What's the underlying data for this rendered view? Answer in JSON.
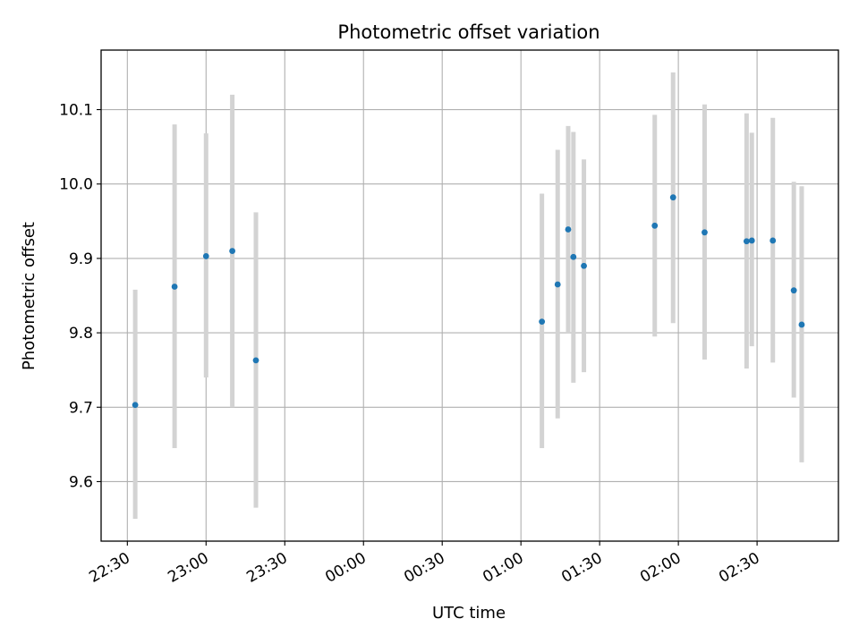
{
  "chart_data": {
    "type": "scatter",
    "title": "Photometric offset variation",
    "xlabel": "UTC time",
    "ylabel": "Photometric offset",
    "x_ticks": [
      "22:30",
      "23:00",
      "23:30",
      "00:00",
      "00:30",
      "01:00",
      "01:30",
      "02:00",
      "02:30"
    ],
    "y_ticks": [
      9.6,
      9.7,
      9.8,
      9.9,
      10.0,
      10.1
    ],
    "y_tick_labels": [
      "9.6",
      "9.7",
      "9.8",
      "9.9",
      "10.0",
      "10.1"
    ],
    "xlim": [
      "22:20",
      "03:01"
    ],
    "ylim": [
      9.52,
      10.18
    ],
    "grid": true,
    "colors": {
      "point": "#1f77b4",
      "errorbar": "#d3d3d3",
      "grid": "#b0b0b0"
    },
    "points": [
      {
        "x": "22:33",
        "y": 9.703,
        "ylow": 9.55,
        "yhigh": 9.858
      },
      {
        "x": "22:48",
        "y": 9.862,
        "ylow": 9.645,
        "yhigh": 10.08
      },
      {
        "x": "23:00",
        "y": 9.903,
        "ylow": 9.74,
        "yhigh": 10.068
      },
      {
        "x": "23:10",
        "y": 9.91,
        "ylow": 9.7,
        "yhigh": 10.12
      },
      {
        "x": "23:19",
        "y": 9.763,
        "ylow": 9.565,
        "yhigh": 9.962
      },
      {
        "x": "01:08",
        "y": 9.815,
        "ylow": 9.645,
        "yhigh": 9.987
      },
      {
        "x": "01:14",
        "y": 9.865,
        "ylow": 9.685,
        "yhigh": 10.046
      },
      {
        "x": "01:18",
        "y": 9.939,
        "ylow": 9.8,
        "yhigh": 10.078
      },
      {
        "x": "01:20",
        "y": 9.902,
        "ylow": 9.733,
        "yhigh": 10.07
      },
      {
        "x": "01:24",
        "y": 9.89,
        "ylow": 9.747,
        "yhigh": 10.033
      },
      {
        "x": "01:51",
        "y": 9.944,
        "ylow": 9.795,
        "yhigh": 10.093
      },
      {
        "x": "01:58",
        "y": 9.982,
        "ylow": 9.813,
        "yhigh": 10.15
      },
      {
        "x": "02:10",
        "y": 9.935,
        "ylow": 9.764,
        "yhigh": 10.107
      },
      {
        "x": "02:26",
        "y": 9.923,
        "ylow": 9.752,
        "yhigh": 10.095
      },
      {
        "x": "02:28",
        "y": 9.924,
        "ylow": 9.782,
        "yhigh": 10.069
      },
      {
        "x": "02:36",
        "y": 9.924,
        "ylow": 9.76,
        "yhigh": 10.089
      },
      {
        "x": "02:44",
        "y": 9.857,
        "ylow": 9.713,
        "yhigh": 10.003
      },
      {
        "x": "02:47",
        "y": 9.811,
        "ylow": 9.626,
        "yhigh": 9.997
      }
    ]
  }
}
